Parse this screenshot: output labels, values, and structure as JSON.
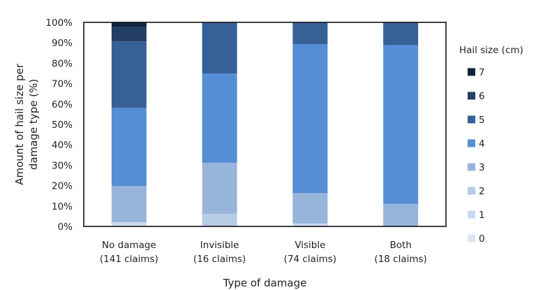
{
  "chart_data": {
    "type": "bar",
    "stacked": true,
    "categories": [
      "No damage\n(141 claims)",
      "Invisible\n(16 claims)",
      "Visible\n(74 claims)",
      "Both\n(18 claims)"
    ],
    "xlabel": "Type of damage",
    "ylabel": "Amount of hail size per damage type (%)",
    "ylim": [
      0,
      100
    ],
    "yticks": [
      "0%",
      "10%",
      "20%",
      "30%",
      "40%",
      "50%",
      "60%",
      "70%",
      "80%",
      "90%",
      "100%"
    ],
    "legend_title": "Hail size (cm)",
    "legend_position": "right",
    "grid": false,
    "series": [
      {
        "name": "0",
        "color": "#dce6f3",
        "values": [
          0.7,
          0,
          0,
          0
        ]
      },
      {
        "name": "1",
        "color": "#c9d9ef",
        "values": [
          1.4,
          0,
          1.4,
          0
        ]
      },
      {
        "name": "2",
        "color": "#b6cbe6",
        "values": [
          0,
          6.2,
          0,
          0
        ]
      },
      {
        "name": "3",
        "color": "#97b4da",
        "values": [
          17.7,
          25.0,
          14.9,
          11.1
        ]
      },
      {
        "name": "4",
        "color": "#558ed5",
        "values": [
          38.3,
          43.8,
          73.0,
          77.8
        ]
      },
      {
        "name": "5",
        "color": "#376097",
        "values": [
          32.6,
          25.0,
          10.8,
          11.1
        ]
      },
      {
        "name": "6",
        "color": "#243f63",
        "values": [
          7.1,
          0,
          0,
          0
        ]
      },
      {
        "name": "7",
        "color": "#0f2340",
        "values": [
          2.1,
          0,
          0,
          0
        ]
      }
    ]
  }
}
